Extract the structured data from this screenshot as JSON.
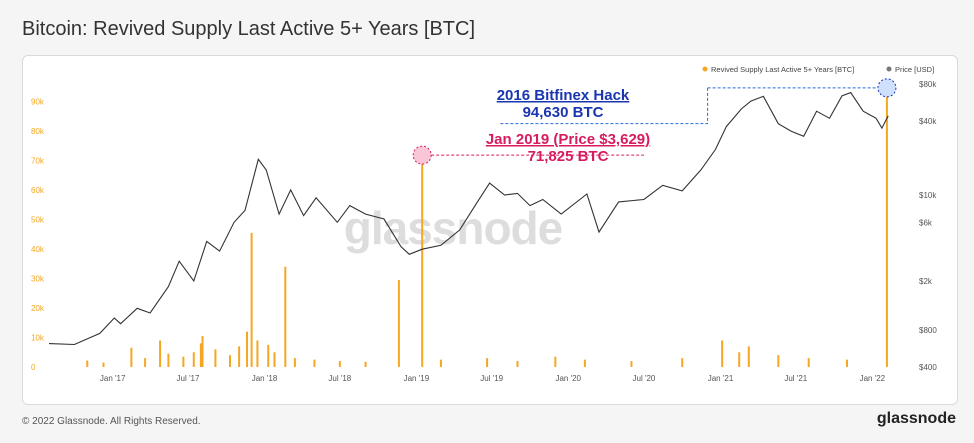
{
  "title": "Bitcoin: Revived Supply Last Active 5+ Years [BTC]",
  "footer": {
    "copyright": "© 2022 Glassnode. All Rights Reserved.",
    "brand": "glassnode"
  },
  "watermark": "glassnode",
  "colors": {
    "bars": "#f5a623",
    "price": "#333333",
    "bitfinex": "#1a35b0",
    "jan2019": "#d81b60"
  },
  "chart_data": {
    "type": "bar",
    "title": "Bitcoin: Revived Supply Last Active 5+ Years [BTC]",
    "legend": [
      "Revived Supply Last Active 5+ Years [BTC]",
      "Price [USD]"
    ],
    "legend_placement": "top-right",
    "x_ticks": [
      "Jan '17",
      "Jul '17",
      "Jan '18",
      "Jul '18",
      "Jan '19",
      "Jul '19",
      "Jan '20",
      "Jul '20",
      "Jan '21",
      "Jul '21",
      "Jan '22"
    ],
    "y_left_ticks": [
      "0",
      "10k",
      "20k",
      "30k",
      "40k",
      "50k",
      "60k",
      "70k",
      "80k",
      "90k"
    ],
    "y_right_ticks": [
      "$400",
      "$800",
      "$2k",
      "$6k",
      "$10k",
      "$40k",
      "$80k"
    ],
    "ylim_left": [
      0,
      100000
    ],
    "bars": [
      {
        "date": "2016-11-01",
        "value": 2200
      },
      {
        "date": "2016-12-10",
        "value": 1500
      },
      {
        "date": "2017-02-15",
        "value": 6500
      },
      {
        "date": "2017-03-20",
        "value": 3000
      },
      {
        "date": "2017-04-25",
        "value": 9000
      },
      {
        "date": "2017-05-15",
        "value": 4500
      },
      {
        "date": "2017-06-20",
        "value": 3500
      },
      {
        "date": "2017-07-15",
        "value": 5000
      },
      {
        "date": "2017-08-01",
        "value": 8000
      },
      {
        "date": "2017-08-05",
        "value": 10500
      },
      {
        "date": "2017-09-05",
        "value": 6000
      },
      {
        "date": "2017-10-10",
        "value": 4000
      },
      {
        "date": "2017-11-01",
        "value": 7000
      },
      {
        "date": "2017-11-20",
        "value": 12000
      },
      {
        "date": "2017-12-01",
        "value": 45500
      },
      {
        "date": "2017-12-15",
        "value": 9000
      },
      {
        "date": "2018-01-10",
        "value": 7500
      },
      {
        "date": "2018-01-25",
        "value": 5000
      },
      {
        "date": "2018-02-20",
        "value": 34000
      },
      {
        "date": "2018-03-15",
        "value": 3000
      },
      {
        "date": "2018-05-01",
        "value": 2500
      },
      {
        "date": "2018-07-01",
        "value": 2000
      },
      {
        "date": "2018-09-01",
        "value": 1800
      },
      {
        "date": "2018-11-20",
        "value": 29500
      },
      {
        "date": "2019-01-15",
        "value": 71825
      },
      {
        "date": "2019-03-01",
        "value": 2500
      },
      {
        "date": "2019-06-20",
        "value": 3000
      },
      {
        "date": "2019-09-01",
        "value": 2000
      },
      {
        "date": "2019-12-01",
        "value": 3500
      },
      {
        "date": "2020-02-10",
        "value": 2500
      },
      {
        "date": "2020-06-01",
        "value": 2000
      },
      {
        "date": "2020-10-01",
        "value": 3000
      },
      {
        "date": "2021-01-05",
        "value": 9000
      },
      {
        "date": "2021-02-15",
        "value": 5000
      },
      {
        "date": "2021-03-10",
        "value": 7000
      },
      {
        "date": "2021-05-20",
        "value": 4000
      },
      {
        "date": "2021-08-01",
        "value": 3000
      },
      {
        "date": "2021-11-01",
        "value": 2500
      },
      {
        "date": "2022-02-05",
        "value": 94630
      }
    ],
    "price_series": [
      {
        "date": "2016-08-01",
        "price": 620
      },
      {
        "date": "2016-10-01",
        "price": 610
      },
      {
        "date": "2016-12-01",
        "price": 750
      },
      {
        "date": "2017-01-05",
        "price": 1000
      },
      {
        "date": "2017-01-20",
        "price": 900
      },
      {
        "date": "2017-03-01",
        "price": 1200
      },
      {
        "date": "2017-04-01",
        "price": 1100
      },
      {
        "date": "2017-05-15",
        "price": 1800
      },
      {
        "date": "2017-06-10",
        "price": 2900
      },
      {
        "date": "2017-07-15",
        "price": 2000
      },
      {
        "date": "2017-08-15",
        "price": 4200
      },
      {
        "date": "2017-09-15",
        "price": 3500
      },
      {
        "date": "2017-10-20",
        "price": 6000
      },
      {
        "date": "2017-11-15",
        "price": 7500
      },
      {
        "date": "2017-12-17",
        "price": 19500
      },
      {
        "date": "2018-01-05",
        "price": 16000
      },
      {
        "date": "2018-02-05",
        "price": 7000
      },
      {
        "date": "2018-03-05",
        "price": 11000
      },
      {
        "date": "2018-04-05",
        "price": 6800
      },
      {
        "date": "2018-05-05",
        "price": 9500
      },
      {
        "date": "2018-06-25",
        "price": 6000
      },
      {
        "date": "2018-07-25",
        "price": 8200
      },
      {
        "date": "2018-09-01",
        "price": 7000
      },
      {
        "date": "2018-10-15",
        "price": 6400
      },
      {
        "date": "2018-11-25",
        "price": 3800
      },
      {
        "date": "2018-12-15",
        "price": 3300
      },
      {
        "date": "2019-01-15",
        "price": 3629
      },
      {
        "date": "2019-03-01",
        "price": 3900
      },
      {
        "date": "2019-04-15",
        "price": 5200
      },
      {
        "date": "2019-05-25",
        "price": 8500
      },
      {
        "date": "2019-06-26",
        "price": 12500
      },
      {
        "date": "2019-08-01",
        "price": 10000
      },
      {
        "date": "2019-09-01",
        "price": 10300
      },
      {
        "date": "2019-10-01",
        "price": 8200
      },
      {
        "date": "2019-11-01",
        "price": 9200
      },
      {
        "date": "2019-12-15",
        "price": 7000
      },
      {
        "date": "2020-02-15",
        "price": 10200
      },
      {
        "date": "2020-03-15",
        "price": 5000
      },
      {
        "date": "2020-05-01",
        "price": 8800
      },
      {
        "date": "2020-07-01",
        "price": 9200
      },
      {
        "date": "2020-08-15",
        "price": 12000
      },
      {
        "date": "2020-10-01",
        "price": 10800
      },
      {
        "date": "2020-11-15",
        "price": 16000
      },
      {
        "date": "2020-12-20",
        "price": 23500
      },
      {
        "date": "2021-01-15",
        "price": 36000
      },
      {
        "date": "2021-02-20",
        "price": 50000
      },
      {
        "date": "2021-03-15",
        "price": 58000
      },
      {
        "date": "2021-04-14",
        "price": 63500
      },
      {
        "date": "2021-05-20",
        "price": 38000
      },
      {
        "date": "2021-06-20",
        "price": 33000
      },
      {
        "date": "2021-07-20",
        "price": 30000
      },
      {
        "date": "2021-08-20",
        "price": 48000
      },
      {
        "date": "2021-09-20",
        "price": 42000
      },
      {
        "date": "2021-10-20",
        "price": 64000
      },
      {
        "date": "2021-11-10",
        "price": 68000
      },
      {
        "date": "2021-12-10",
        "price": 48000
      },
      {
        "date": "2022-01-10",
        "price": 42000
      },
      {
        "date": "2022-01-24",
        "price": 35000
      },
      {
        "date": "2022-02-08",
        "price": 44000
      }
    ],
    "annotations": [
      {
        "id": "bitfinex",
        "title": "2016 Bitfinex Hack",
        "value_label": "94,630 BTC",
        "date": "2022-02-05",
        "value": 94630,
        "price_link": 68000
      },
      {
        "id": "jan2019",
        "title": "Jan 2019 (Price $3,629)",
        "value_label": "71,825 BTC",
        "date": "2019-01-15",
        "value": 71825
      }
    ]
  }
}
